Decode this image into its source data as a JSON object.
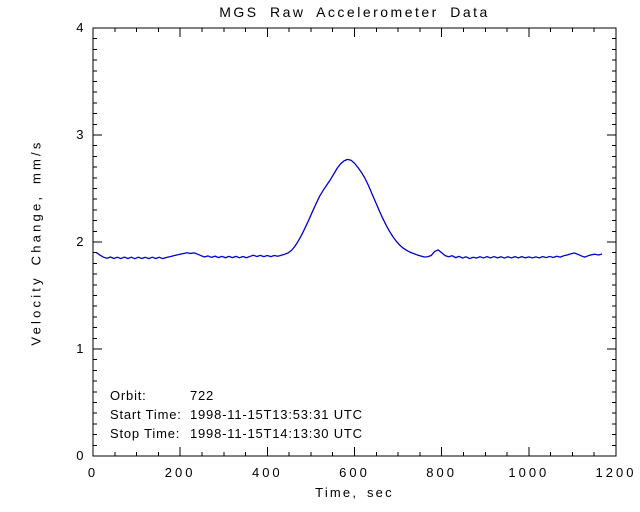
{
  "window": {
    "background": "#ffffff",
    "frame_color": "#000000"
  },
  "chart_data": {
    "type": "line",
    "title": "MGS Raw Accelerometer Data",
    "xlabel": "Time, sec",
    "ylabel": "Velocity Change, mm/s",
    "xlim": [
      0,
      1200
    ],
    "ylim": [
      0,
      4
    ],
    "grid": false,
    "legend": "none",
    "line_color": "#0000CD",
    "x_ticks": {
      "major": [
        0,
        200,
        400,
        600,
        800,
        1000,
        1200
      ],
      "labels": [
        "0",
        "200",
        "400",
        "600",
        "800",
        "1000",
        "1200"
      ],
      "minor_step": 50
    },
    "y_ticks": {
      "major": [
        0,
        1,
        2,
        3,
        4
      ],
      "labels": [
        "0",
        "1",
        "2",
        "3",
        "4"
      ],
      "minor_step": 0.1
    },
    "series": [
      {
        "name": "velocity_change",
        "x": [
          8,
          16,
          24,
          32,
          40,
          48,
          56,
          64,
          72,
          80,
          88,
          96,
          104,
          112,
          120,
          128,
          136,
          144,
          152,
          160,
          168,
          176,
          184,
          192,
          200,
          208,
          216,
          224,
          232,
          240,
          248,
          256,
          264,
          272,
          280,
          288,
          296,
          304,
          312,
          320,
          328,
          336,
          344,
          352,
          360,
          368,
          376,
          384,
          392,
          400,
          408,
          416,
          424,
          432,
          440,
          448,
          456,
          464,
          472,
          480,
          488,
          496,
          504,
          512,
          520,
          528,
          536,
          544,
          552,
          560,
          568,
          576,
          584,
          592,
          600,
          608,
          616,
          624,
          632,
          640,
          648,
          656,
          664,
          672,
          680,
          688,
          696,
          704,
          712,
          720,
          728,
          736,
          744,
          752,
          760,
          768,
          776,
          784,
          792,
          800,
          808,
          816,
          824,
          832,
          840,
          848,
          856,
          864,
          872,
          880,
          888,
          896,
          904,
          912,
          920,
          928,
          936,
          944,
          952,
          960,
          968,
          976,
          984,
          992,
          1000,
          1008,
          1016,
          1024,
          1032,
          1040,
          1048,
          1056,
          1064,
          1072,
          1080,
          1088,
          1096,
          1104,
          1112,
          1120,
          1128,
          1136,
          1144,
          1152,
          1160,
          1168
        ],
        "y": [
          1.9,
          1.878,
          1.858,
          1.848,
          1.86,
          1.846,
          1.858,
          1.845,
          1.859,
          1.846,
          1.858,
          1.844,
          1.858,
          1.846,
          1.857,
          1.845,
          1.858,
          1.846,
          1.857,
          1.845,
          1.855,
          1.862,
          1.87,
          1.878,
          1.886,
          1.893,
          1.9,
          1.893,
          1.898,
          1.886,
          1.872,
          1.86,
          1.87,
          1.856,
          1.868,
          1.854,
          1.866,
          1.853,
          1.866,
          1.854,
          1.866,
          1.853,
          1.864,
          1.853,
          1.865,
          1.876,
          1.864,
          1.875,
          1.863,
          1.874,
          1.863,
          1.874,
          1.867,
          1.876,
          1.886,
          1.898,
          1.924,
          1.964,
          2.016,
          2.076,
          2.144,
          2.214,
          2.288,
          2.36,
          2.428,
          2.482,
          2.53,
          2.578,
          2.632,
          2.688,
          2.73,
          2.758,
          2.772,
          2.764,
          2.736,
          2.696,
          2.65,
          2.596,
          2.528,
          2.452,
          2.376,
          2.3,
          2.228,
          2.162,
          2.102,
          2.05,
          2.006,
          1.97,
          1.942,
          1.921,
          1.904,
          1.891,
          1.879,
          1.869,
          1.86,
          1.862,
          1.874,
          1.912,
          1.926,
          1.9,
          1.873,
          1.862,
          1.872,
          1.854,
          1.866,
          1.85,
          1.862,
          1.845,
          1.857,
          1.85,
          1.862,
          1.851,
          1.863,
          1.851,
          1.864,
          1.852,
          1.862,
          1.85,
          1.862,
          1.851,
          1.863,
          1.852,
          1.863,
          1.852,
          1.861,
          1.851,
          1.861,
          1.852,
          1.863,
          1.854,
          1.865,
          1.855,
          1.867,
          1.859,
          1.871,
          1.879,
          1.889,
          1.897,
          1.886,
          1.871,
          1.859,
          1.871,
          1.881,
          1.886,
          1.879,
          1.888
        ]
      }
    ],
    "annotations": [
      {
        "label": "Orbit:",
        "value": "722"
      },
      {
        "label": "Start Time:",
        "value": "1998-11-15T13:53:31 UTC"
      },
      {
        "label": "Stop Time:",
        "value": "1998-11-15T14:13:30 UTC"
      }
    ]
  }
}
